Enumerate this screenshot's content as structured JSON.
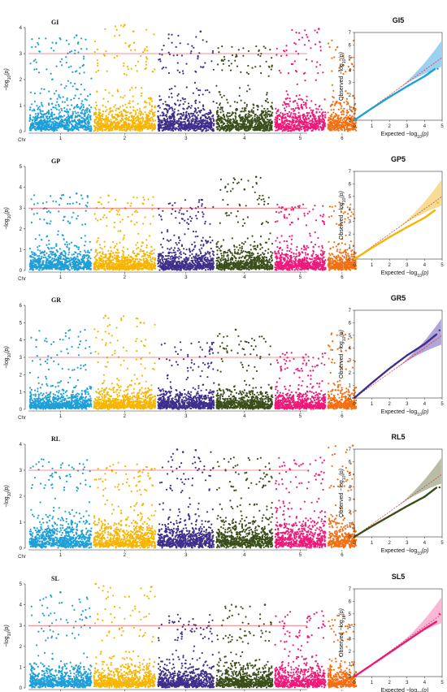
{
  "threshold": 3.0,
  "manhattan_y_label": "-log10(p)",
  "qq_x_label": "Expected -log10(p)",
  "qq_y_label": "Observed -log10(p)",
  "chr_axis_label": "Chr",
  "chromosomes": [
    "1",
    "2",
    "3",
    "4",
    "5",
    "6"
  ],
  "chromosome_colors": [
    "#1f9fd8",
    "#f7b500",
    "#3f2e8c",
    "#3a4f1a",
    "#f0187a",
    "#f36f12"
  ],
  "chart_data": [
    {
      "type": "scatter",
      "kind": "manhattan",
      "title": "GI",
      "ylim": [
        0,
        4
      ],
      "yticks": [
        0,
        1,
        2,
        3,
        4
      ],
      "peaks": [
        {
          "chr": "1",
          "pos": 0.75,
          "value": 3.7
        },
        {
          "chr": "2",
          "pos": 0.5,
          "value": 4.1
        },
        {
          "chr": "3",
          "pos": 0.75,
          "value": 3.85
        },
        {
          "chr": "5",
          "pos": 0.85,
          "value": 3.95
        }
      ],
      "max_by_chr": [
        3.7,
        4.1,
        3.85,
        3.3,
        3.95,
        3.6
      ]
    },
    {
      "type": "scatter",
      "kind": "qq",
      "title": "GI5",
      "xlim": [
        0,
        5
      ],
      "ylim": [
        0,
        7
      ],
      "xticks": [
        0,
        1,
        2,
        3,
        4,
        5
      ],
      "yticks": [
        0,
        1,
        2,
        3,
        4,
        5,
        6,
        7
      ],
      "color": "#1f9fd8",
      "band_color": "#7fc6ee",
      "observed_max": 4.1,
      "curve": [
        [
          0,
          0
        ],
        [
          1,
          0.95
        ],
        [
          2,
          1.85
        ],
        [
          3,
          2.7
        ],
        [
          4,
          3.5
        ],
        [
          4.6,
          4.1
        ]
      ]
    },
    {
      "type": "scatter",
      "kind": "manhattan",
      "title": "GP",
      "ylim": [
        0,
        5
      ],
      "yticks": [
        0,
        1,
        2,
        3,
        4,
        5
      ],
      "peaks": [
        {
          "chr": "1",
          "pos": 0.75,
          "value": 3.7
        },
        {
          "chr": "2",
          "pos": 0.25,
          "value": 3.6
        },
        {
          "chr": "4",
          "pos": 0.5,
          "value": 3.9
        },
        {
          "chr": "4",
          "pos": 0.7,
          "value": 4.5
        }
      ],
      "max_by_chr": [
        3.7,
        3.6,
        3.4,
        4.5,
        3.2,
        3.3
      ]
    },
    {
      "type": "scatter",
      "kind": "qq",
      "title": "GP5",
      "xlim": [
        0,
        5
      ],
      "ylim": [
        0,
        7
      ],
      "xticks": [
        0,
        1,
        2,
        3,
        4,
        5
      ],
      "yticks": [
        0,
        1,
        2,
        3,
        4,
        5,
        6,
        7
      ],
      "color": "#f7b500",
      "band_color": "#f6d27a",
      "observed_max": 4.5,
      "curve": [
        [
          0,
          0
        ],
        [
          1,
          0.9
        ],
        [
          2,
          1.75
        ],
        [
          3,
          2.55
        ],
        [
          4,
          3.3
        ],
        [
          4.6,
          3.9
        ]
      ]
    },
    {
      "type": "scatter",
      "kind": "manhattan",
      "title": "GR",
      "ylim": [
        0,
        6
      ],
      "yticks": [
        0,
        1,
        2,
        3,
        4,
        5,
        6
      ],
      "peaks": [
        {
          "chr": "2",
          "pos": 0.2,
          "value": 5.4
        },
        {
          "chr": "2",
          "pos": 0.75,
          "value": 5.0
        },
        {
          "chr": "4",
          "pos": 0.35,
          "value": 4.6
        },
        {
          "chr": "6",
          "pos": 0.5,
          "value": 4.4
        }
      ],
      "max_by_chr": [
        4.6,
        5.4,
        3.9,
        4.6,
        3.3,
        4.4
      ]
    },
    {
      "type": "scatter",
      "kind": "qq",
      "title": "GR5",
      "xlim": [
        0,
        5
      ],
      "ylim": [
        0,
        7
      ],
      "xticks": [
        0,
        1,
        2,
        3,
        4,
        5
      ],
      "yticks": [
        0,
        1,
        2,
        3,
        4,
        5,
        6,
        7
      ],
      "color": "#3f2e8c",
      "band_color": "#9a8fd1",
      "observed_max": 5.4,
      "curve": [
        [
          0,
          0
        ],
        [
          1,
          1.2
        ],
        [
          2,
          2.35
        ],
        [
          3,
          3.4
        ],
        [
          4,
          4.3
        ],
        [
          4.7,
          5.1
        ]
      ]
    },
    {
      "type": "scatter",
      "kind": "manhattan",
      "title": "RL",
      "ylim": [
        0,
        4
      ],
      "yticks": [
        0,
        1,
        2,
        3,
        4
      ],
      "peaks": [
        {
          "chr": "3",
          "pos": 0.35,
          "value": 3.8
        },
        {
          "chr": "3",
          "pos": 0.45,
          "value": 3.7
        },
        {
          "chr": "6",
          "pos": 0.85,
          "value": 3.95
        }
      ],
      "max_by_chr": [
        3.45,
        3.3,
        3.8,
        3.5,
        3.5,
        3.95
      ]
    },
    {
      "type": "scatter",
      "kind": "qq",
      "title": "RL5",
      "xlim": [
        0,
        5
      ],
      "ylim": [
        0,
        7
      ],
      "xticks": [
        0,
        1,
        2,
        3,
        4,
        5
      ],
      "yticks": [
        0,
        1,
        2,
        3,
        4,
        5,
        6,
        7
      ],
      "color": "#3a4f1a",
      "band_color": "#a8ad8e",
      "observed_max": 3.95,
      "curve": [
        [
          0,
          0
        ],
        [
          1,
          0.85
        ],
        [
          2,
          1.65
        ],
        [
          3,
          2.45
        ],
        [
          4,
          3.2
        ],
        [
          4.7,
          3.95
        ]
      ]
    },
    {
      "type": "scatter",
      "kind": "manhattan",
      "title": "SL",
      "ylim": [
        0,
        5
      ],
      "yticks": [
        0,
        1,
        2,
        3,
        4,
        5
      ],
      "peaks": [
        {
          "chr": "1",
          "pos": 0.5,
          "value": 4.6
        },
        {
          "chr": "2",
          "pos": 0.05,
          "value": 5.0
        },
        {
          "chr": "4",
          "pos": 0.85,
          "value": 4.0
        }
      ],
      "max_by_chr": [
        4.6,
        5.0,
        3.6,
        4.0,
        3.7,
        3.6
      ]
    },
    {
      "type": "scatter",
      "kind": "qq",
      "title": "SL5",
      "xlim": [
        0,
        5
      ],
      "ylim": [
        0,
        7
      ],
      "xticks": [
        0,
        1,
        2,
        3,
        4,
        5
      ],
      "yticks": [
        0,
        1,
        2,
        3,
        4,
        5,
        6,
        7
      ],
      "color": "#f0187a",
      "band_color": "#f7a6c8",
      "observed_max": 5.0,
      "curve": [
        [
          0,
          0
        ],
        [
          1,
          0.95
        ],
        [
          2,
          1.9
        ],
        [
          3,
          2.85
        ],
        [
          4,
          3.8
        ],
        [
          4.7,
          4.4
        ]
      ]
    }
  ]
}
